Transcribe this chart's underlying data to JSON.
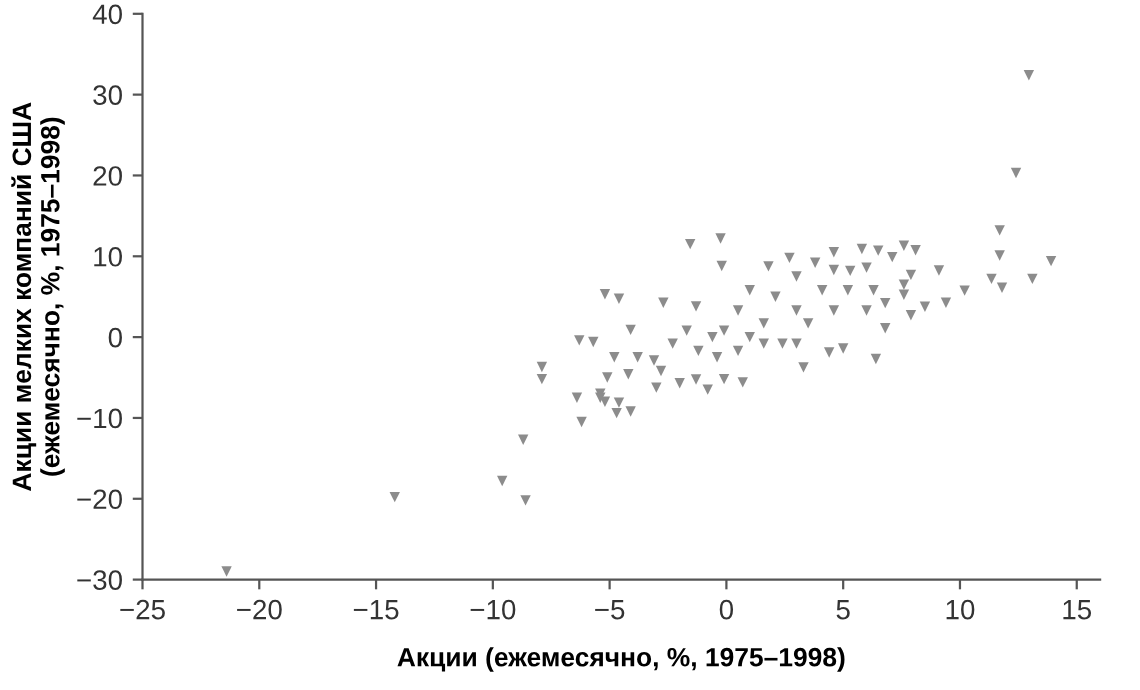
{
  "chart_data": {
    "type": "scatter",
    "xlabel": "Акции (ежемесячно, %, 1975–1998)",
    "ylabel": "Акции мелких компаний США\n(ежемесячно, %, 1975–1998)",
    "xlim": [
      -25,
      16
    ],
    "ylim": [
      -30,
      40
    ],
    "xticks": [
      {
        "value": -25,
        "label": "−25"
      },
      {
        "value": -20,
        "label": "−20"
      },
      {
        "value": -15,
        "label": "−15"
      },
      {
        "value": -10,
        "label": "−10"
      },
      {
        "value": -5,
        "label": "−5"
      },
      0,
      5,
      10,
      15
    ],
    "yticks": [
      {
        "value": -30,
        "label": "−30"
      },
      {
        "value": -20,
        "label": "−20"
      },
      {
        "value": -10,
        "label": "−10"
      },
      0,
      10,
      20,
      30,
      40
    ],
    "marker": "triangle",
    "grid": false,
    "legend": false,
    "series": [
      {
        "color": "#8c8c8c",
        "x": [
          -21.4,
          -14.2,
          -9.6,
          -8.6,
          -8.7,
          -7.9,
          -7.9,
          -6.4,
          -6.2,
          -6.3,
          -5.7,
          -5.2,
          -4.6,
          -4.8,
          -5.1,
          -5.4,
          -5.2,
          -4.6,
          -4.7,
          12.95,
          12.4,
          11.7,
          11.7,
          11.35,
          11.8,
          13.1,
          13.9,
          10.2,
          9.4,
          9.1,
          8.5,
          8.1,
          7.6,
          7.1,
          6.5,
          5.8,
          4.6,
          2.7,
          1.8,
          -0.25,
          -1.55,
          -0.2,
          -2.7,
          -1.3,
          -4.1,
          -4.1,
          -5.4,
          -4.2,
          -3.8,
          -3.0,
          -2.0,
          -1.3,
          -0.8,
          -0.1,
          0.7,
          3.3,
          4.4,
          5.0,
          6.4,
          6.8,
          7.9,
          7.6,
          7.6,
          7.9,
          6.0,
          5.3,
          3.8,
          3.0,
          4.6,
          3.0,
          1.6,
          0.5,
          -0.6,
          -1.7,
          -2.3,
          -3.1,
          1.6,
          2.4,
          1.0,
          2.1,
          3.5,
          5.2,
          6.0,
          6.8,
          -0.1,
          -0.4,
          -1.2,
          -2.8,
          0.5,
          1.0,
          3.0,
          4.1,
          6.3,
          4.6
        ],
        "values": [
          -29,
          -19.8,
          -17.8,
          -20.2,
          -12.7,
          -3.7,
          -5.2,
          -7.5,
          -10.5,
          -0.4,
          -0.6,
          5.3,
          4.75,
          -2.5,
          -5.0,
          -7.0,
          -8.0,
          -8.1,
          -9.4,
          32.4,
          20.3,
          13.2,
          10.1,
          7.2,
          6.1,
          7.2,
          9.4,
          5.75,
          4.25,
          8.25,
          3.75,
          10.75,
          11.3,
          9.9,
          10.7,
          10.9,
          10.5,
          9.8,
          8.75,
          12.2,
          11.5,
          8.8,
          4.25,
          3.8,
          0.9,
          -9.2,
          -7.5,
          -4.6,
          -2.5,
          -6.25,
          -5.7,
          -5.25,
          -6.5,
          -5.2,
          -5.6,
          -3.75,
          -1.9,
          -1.4,
          -2.7,
          1.1,
          2.7,
          6.5,
          5.25,
          7.7,
          8.6,
          8.2,
          9.2,
          7.5,
          3.3,
          3.3,
          1.7,
          3.3,
          0,
          0.8,
          -0.8,
          -2.9,
          -0.8,
          -0.8,
          5.8,
          5.0,
          1.7,
          5.8,
          3.3,
          4.2,
          0.8,
          -2.5,
          -1.7,
          -4.2,
          -1.7,
          0,
          -0.8,
          5.8,
          5.8,
          8.3
        ]
      }
    ]
  }
}
